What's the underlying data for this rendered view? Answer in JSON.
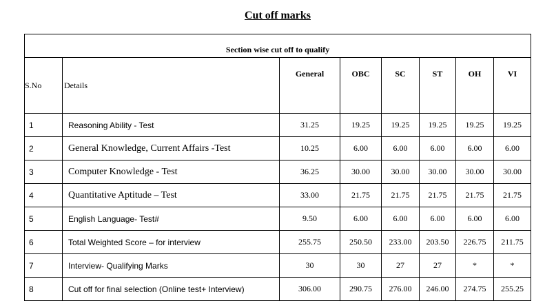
{
  "title": "Cut off marks",
  "table": {
    "section_heading": "Section wise cut off to qualify",
    "sno_label": "S.No",
    "details_label": "Details",
    "categories": [
      "General",
      "OBC",
      "SC",
      "ST",
      "OH",
      "VI"
    ],
    "rows": [
      {
        "sno": "1",
        "details": "Reasoning Ability - Test",
        "values": [
          "31.25",
          "19.25",
          "19.25",
          "19.25",
          "19.25",
          "19.25"
        ]
      },
      {
        "sno": "2",
        "details": "General Knowledge, Current Affairs -Test",
        "values": [
          "10.25",
          "6.00",
          "6.00",
          "6.00",
          "6.00",
          "6.00"
        ]
      },
      {
        "sno": "3",
        "details": "Computer Knowledge - Test",
        "values": [
          "36.25",
          "30.00",
          "30.00",
          "30.00",
          "30.00",
          "30.00"
        ]
      },
      {
        "sno": "4",
        "details": "Quantitative Aptitude – Test",
        "values": [
          "33.00",
          "21.75",
          "21.75",
          "21.75",
          "21.75",
          "21.75"
        ]
      },
      {
        "sno": "5",
        "details": "English Language- Test#",
        "values": [
          "9.50",
          "6.00",
          "6.00",
          "6.00",
          "6.00",
          "6.00"
        ]
      },
      {
        "sno": "6",
        "details": "Total Weighted Score – for interview",
        "values": [
          "255.75",
          "250.50",
          "233.00",
          "203.50",
          "226.75",
          "211.75"
        ]
      },
      {
        "sno": "7",
        "details": "Interview- Qualifying Marks",
        "values": [
          "30",
          "30",
          "27",
          "27",
          "*",
          "*"
        ]
      },
      {
        "sno": "8",
        "details": "Cut off for final selection (Online test+ Interview)",
        "values": [
          "306.00",
          "290.75",
          "276.00",
          "246.00",
          "274.75",
          "255.25"
        ]
      }
    ]
  }
}
